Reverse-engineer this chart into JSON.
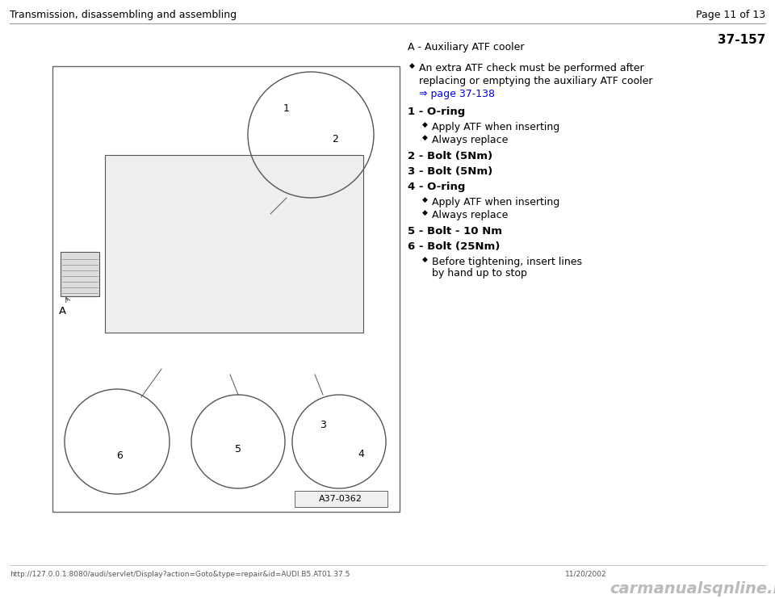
{
  "page_header_left": "Transmission, disassembling and assembling",
  "page_header_right": "Page 11 of 13",
  "page_number": "37-157",
  "section_label": "A - Auxiliary ATF cooler",
  "intro_line1": "An extra ATF check must be performed after",
  "intro_line2": "replacing or emptying the auxiliary ATF cooler",
  "link_text": "⇒ page 37-138",
  "items": [
    {
      "number": "1",
      "label": "O-ring",
      "bold": true,
      "sub_bullets": [
        "Apply ATF when inserting",
        "Always replace"
      ]
    },
    {
      "number": "2",
      "label": "Bolt (5Nm)",
      "bold": true,
      "sub_bullets": []
    },
    {
      "number": "3",
      "label": "Bolt (5Nm)",
      "bold": true,
      "sub_bullets": []
    },
    {
      "number": "4",
      "label": "O-ring",
      "bold": true,
      "sub_bullets": [
        "Apply ATF when inserting",
        "Always replace"
      ]
    },
    {
      "number": "5",
      "label": "Bolt - 10 Nm",
      "bold": true,
      "sub_bullets": []
    },
    {
      "number": "6",
      "label": "Bolt (25Nm)",
      "bold": true,
      "sub_bullets": [
        "Before tightening, insert lines by hand up to stop"
      ]
    }
  ],
  "footer_left": "http://127.0.0.1:8080/audi/servlet/Display?action=Goto&type=repair&id=AUDI.B5.AT01.37.5",
  "footer_right": "11/20/2002",
  "footer_logo": "carmanualsqnline.info",
  "image_label": "A37-0362",
  "bg_color": "#ffffff",
  "text_color": "#000000",
  "link_color": "#0000ee",
  "header_line_color": "#999999"
}
